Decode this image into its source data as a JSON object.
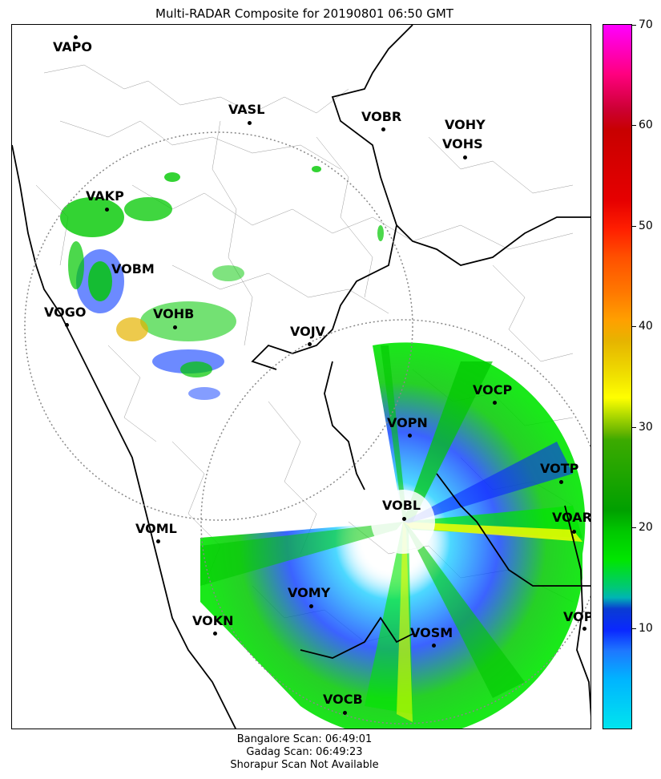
{
  "title": "Multi-RADAR Composite for 20190801 06:50 GMT",
  "footer": {
    "line1": "Bangalore Scan: 06:49:01",
    "line2": "Gadag Scan: 06:49:23",
    "line3": "Shorapur Scan Not Available"
  },
  "colorbar": {
    "ticks": [
      "10",
      "20",
      "30",
      "40",
      "50",
      "60",
      "70"
    ],
    "range": [
      0,
      70
    ]
  },
  "stations": [
    {
      "code": "VAPO"
    },
    {
      "code": "VASL"
    },
    {
      "code": "VOBR"
    },
    {
      "code": "VOHY"
    },
    {
      "code": "VOHS"
    },
    {
      "code": "VAKP"
    },
    {
      "code": "VOBM"
    },
    {
      "code": "VOGO"
    },
    {
      "code": "VOHB"
    },
    {
      "code": "VOJV"
    },
    {
      "code": "VOCP"
    },
    {
      "code": "VOPN"
    },
    {
      "code": "VOTP"
    },
    {
      "code": "VOBL"
    },
    {
      "code": "VOAR"
    },
    {
      "code": "VOML"
    },
    {
      "code": "VOMY"
    },
    {
      "code": "VOKN"
    },
    {
      "code": "VOPC"
    },
    {
      "code": "VOSM"
    },
    {
      "code": "VOCB"
    }
  ],
  "colors": {
    "boundary": "#000000",
    "district_lines": "#888888",
    "range_ring": "#888888"
  }
}
